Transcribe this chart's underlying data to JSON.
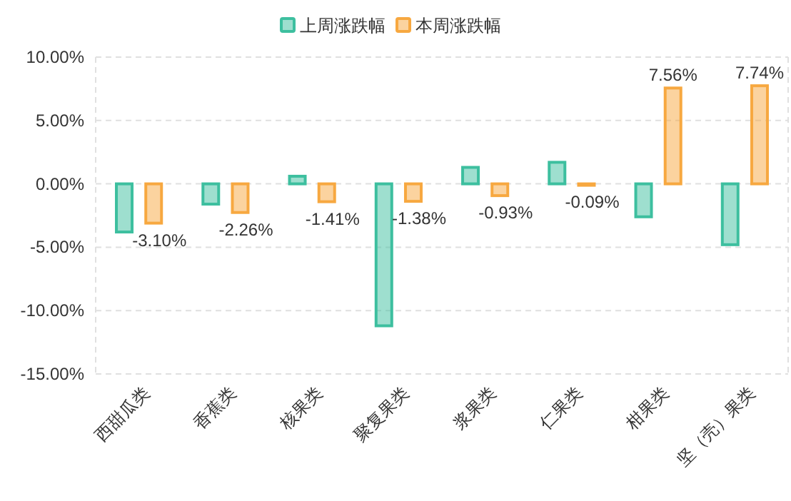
{
  "chart_data": {
    "type": "bar",
    "categories": [
      "西甜瓜类",
      "香蕉类",
      "核果类",
      "聚复果类",
      "浆果类",
      "仁果类",
      "柑果类",
      "坚（壳）果类"
    ],
    "series": [
      {
        "name": "上周涨跌幅",
        "color": "#3dbf9f",
        "values": [
          -3.8,
          -1.6,
          0.6,
          -11.2,
          1.3,
          1.7,
          -2.6,
          -4.8
        ]
      },
      {
        "name": "本周涨跌幅",
        "color": "#f7a840",
        "values": [
          -3.1,
          -2.26,
          -1.41,
          -1.38,
          -0.93,
          -0.09,
          7.56,
          7.74
        ],
        "value_labels": [
          "-3.10%",
          "-2.26%",
          "-1.41%",
          "-1.38%",
          "-0.93%",
          "-0.09%",
          "7.56%",
          "7.74%"
        ]
      }
    ],
    "ylim": [
      -15,
      10
    ],
    "yticks": [
      {
        "value": -15,
        "label": "-15.00%"
      },
      {
        "value": -10,
        "label": "-10.00%"
      },
      {
        "value": -5,
        "label": "-5.00%"
      },
      {
        "value": 0,
        "label": "0.00%"
      },
      {
        "value": 5,
        "label": "5.00%"
      },
      {
        "value": 10,
        "label": "10.00%"
      }
    ],
    "grid": "y",
    "legend": "top"
  }
}
